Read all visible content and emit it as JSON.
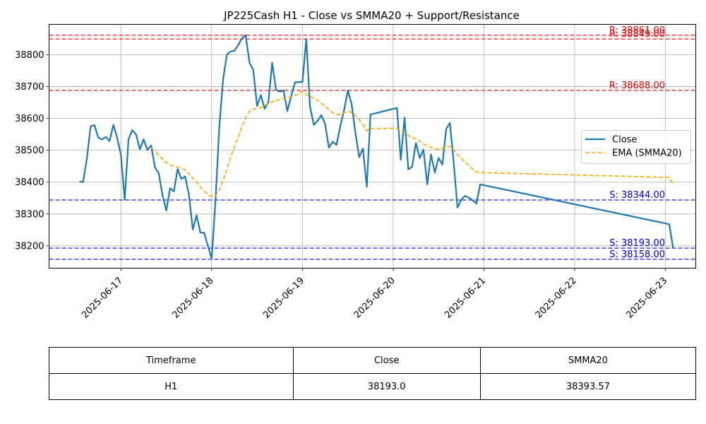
{
  "chart_data": {
    "type": "line",
    "title": "JP225Cash H1 - Close vs SMMA20 + Support/Resistance",
    "ylim": [
      38130,
      38895
    ],
    "yticks": [
      38200,
      38300,
      38400,
      38500,
      38600,
      38700,
      38800
    ],
    "ytick_labels": [
      "38200",
      "38300",
      "38400",
      "38500",
      "38600",
      "38700",
      "38800"
    ],
    "xlim": [
      "2025-06-16 05:00",
      "2025-06-23 08:00"
    ],
    "xticks": [
      "2025-06-17",
      "2025-06-18",
      "2025-06-19",
      "2025-06-20",
      "2025-06-21",
      "2025-06-22",
      "2025-06-23"
    ],
    "grid": true,
    "legend": {
      "position": "center-right"
    },
    "series": [
      {
        "name": "Close",
        "color": "#1f77b4",
        "style": "solid",
        "x": [
          "2025-06-16 13:00",
          "2025-06-16 14:00",
          "2025-06-16 15:00",
          "2025-06-16 16:00",
          "2025-06-16 17:00",
          "2025-06-16 18:00",
          "2025-06-16 19:00",
          "2025-06-16 20:00",
          "2025-06-16 21:00",
          "2025-06-16 22:00",
          "2025-06-16 23:00",
          "2025-06-17 00:00",
          "2025-06-17 01:00",
          "2025-06-17 02:00",
          "2025-06-17 03:00",
          "2025-06-17 04:00",
          "2025-06-17 05:00",
          "2025-06-17 06:00",
          "2025-06-17 07:00",
          "2025-06-17 08:00",
          "2025-06-17 09:00",
          "2025-06-17 10:00",
          "2025-06-17 11:00",
          "2025-06-17 12:00",
          "2025-06-17 13:00",
          "2025-06-17 14:00",
          "2025-06-17 15:00",
          "2025-06-17 16:00",
          "2025-06-17 17:00",
          "2025-06-17 18:00",
          "2025-06-17 19:00",
          "2025-06-17 20:00",
          "2025-06-17 21:00",
          "2025-06-17 22:00",
          "2025-06-17 23:00",
          "2025-06-18 00:00",
          "2025-06-18 01:00",
          "2025-06-18 02:00",
          "2025-06-18 03:00",
          "2025-06-18 04:00",
          "2025-06-18 05:00",
          "2025-06-18 06:00",
          "2025-06-18 07:00",
          "2025-06-18 08:00",
          "2025-06-18 09:00",
          "2025-06-18 10:00",
          "2025-06-18 11:00",
          "2025-06-18 12:00",
          "2025-06-18 13:00",
          "2025-06-18 14:00",
          "2025-06-18 15:00",
          "2025-06-18 16:00",
          "2025-06-18 17:00",
          "2025-06-18 18:00",
          "2025-06-18 19:00",
          "2025-06-18 20:00",
          "2025-06-18 21:00",
          "2025-06-18 22:00",
          "2025-06-18 23:00",
          "2025-06-19 00:00",
          "2025-06-19 01:00",
          "2025-06-19 02:00",
          "2025-06-19 03:00",
          "2025-06-19 04:00",
          "2025-06-19 05:00",
          "2025-06-19 06:00",
          "2025-06-19 07:00",
          "2025-06-19 08:00",
          "2025-06-19 09:00",
          "2025-06-19 10:00",
          "2025-06-19 11:00",
          "2025-06-19 12:00",
          "2025-06-19 13:00",
          "2025-06-19 14:00",
          "2025-06-19 15:00",
          "2025-06-19 16:00",
          "2025-06-19 17:00",
          "2025-06-19 18:00",
          "2025-06-20 01:00",
          "2025-06-20 02:00",
          "2025-06-20 03:00",
          "2025-06-20 04:00",
          "2025-06-20 05:00",
          "2025-06-20 06:00",
          "2025-06-20 07:00",
          "2025-06-20 08:00",
          "2025-06-20 09:00",
          "2025-06-20 10:00",
          "2025-06-20 11:00",
          "2025-06-20 12:00",
          "2025-06-20 13:00",
          "2025-06-20 14:00",
          "2025-06-20 15:00",
          "2025-06-20 16:00",
          "2025-06-20 17:00",
          "2025-06-20 18:00",
          "2025-06-20 19:00",
          "2025-06-20 20:00",
          "2025-06-20 21:00",
          "2025-06-20 22:00",
          "2025-06-20 23:00",
          "2025-06-23 01:00",
          "2025-06-23 02:00"
        ],
        "y": [
          38402,
          38400,
          38475,
          38575,
          38579,
          38540,
          38534,
          38542,
          38529,
          38580,
          38540,
          38485,
          38345,
          38534,
          38563,
          38550,
          38503,
          38534,
          38501,
          38515,
          38446,
          38429,
          38359,
          38311,
          38381,
          38371,
          38441,
          38410,
          38418,
          38360,
          38251,
          38296,
          38242,
          38241,
          38200,
          38160,
          38340,
          38571,
          38720,
          38800,
          38810,
          38812,
          38830,
          38851,
          38861,
          38775,
          38752,
          38639,
          38673,
          38630,
          38651,
          38775,
          38690,
          38684,
          38688,
          38623,
          38668,
          38713,
          38714,
          38714,
          38849,
          38637,
          38580,
          38592,
          38610,
          38583,
          38508,
          38527,
          38517,
          38576,
          38625,
          38688,
          38646,
          38555,
          38478,
          38506,
          38385,
          38612,
          38633,
          38470,
          38602,
          38440,
          38448,
          38523,
          38475,
          38502,
          38393,
          38487,
          38430,
          38476,
          38455,
          38567,
          38586,
          38460,
          38320,
          38345,
          38357,
          38351,
          38343,
          38333,
          38393,
          38268,
          38193
        ]
      },
      {
        "name": "EMA (SMMA20)",
        "color": "#ffa500",
        "style": "dashed",
        "x": [
          "2025-06-17 08:00",
          "2025-06-17 09:00",
          "2025-06-17 10:00",
          "2025-06-17 11:00",
          "2025-06-17 12:00",
          "2025-06-17 13:00",
          "2025-06-17 14:00",
          "2025-06-17 15:00",
          "2025-06-17 16:00",
          "2025-06-17 17:00",
          "2025-06-17 18:00",
          "2025-06-17 19:00",
          "2025-06-17 20:00",
          "2025-06-17 21:00",
          "2025-06-17 22:00",
          "2025-06-17 23:00",
          "2025-06-18 00:00",
          "2025-06-18 01:00",
          "2025-06-18 02:00",
          "2025-06-18 03:00",
          "2025-06-18 04:00",
          "2025-06-18 05:00",
          "2025-06-18 06:00",
          "2025-06-18 07:00",
          "2025-06-18 08:00",
          "2025-06-18 09:00",
          "2025-06-18 10:00",
          "2025-06-18 11:00",
          "2025-06-18 12:00",
          "2025-06-18 13:00",
          "2025-06-18 14:00",
          "2025-06-18 15:00",
          "2025-06-18 16:00",
          "2025-06-18 17:00",
          "2025-06-18 18:00",
          "2025-06-18 19:00",
          "2025-06-18 20:00",
          "2025-06-18 21:00",
          "2025-06-18 22:00",
          "2025-06-18 23:00",
          "2025-06-19 00:00",
          "2025-06-19 01:00",
          "2025-06-19 02:00",
          "2025-06-19 03:00",
          "2025-06-19 04:00",
          "2025-06-19 05:00",
          "2025-06-19 06:00",
          "2025-06-19 07:00",
          "2025-06-19 08:00",
          "2025-06-19 09:00",
          "2025-06-19 10:00",
          "2025-06-19 11:00",
          "2025-06-19 12:00",
          "2025-06-19 13:00",
          "2025-06-19 14:00",
          "2025-06-19 15:00",
          "2025-06-19 16:00",
          "2025-06-19 17:00",
          "2025-06-19 18:00",
          "2025-06-20 01:00",
          "2025-06-20 02:00",
          "2025-06-20 03:00",
          "2025-06-20 04:00",
          "2025-06-20 05:00",
          "2025-06-20 06:00",
          "2025-06-20 07:00",
          "2025-06-20 08:00",
          "2025-06-20 09:00",
          "2025-06-20 10:00",
          "2025-06-20 11:00",
          "2025-06-20 12:00",
          "2025-06-20 13:00",
          "2025-06-20 14:00",
          "2025-06-20 15:00",
          "2025-06-20 16:00",
          "2025-06-20 17:00",
          "2025-06-20 18:00",
          "2025-06-20 19:00",
          "2025-06-20 20:00",
          "2025-06-20 21:00",
          "2025-06-20 22:00",
          "2025-06-20 23:00",
          "2025-06-23 01:00",
          "2025-06-23 02:00"
        ],
        "y": [
          38508,
          38497,
          38485,
          38472,
          38461,
          38454,
          38450,
          38447,
          38444,
          38438,
          38425,
          38413,
          38399,
          38385,
          38372,
          38361,
          38355,
          38357,
          38375,
          38405,
          38440,
          38478,
          38510,
          38542,
          38573,
          38603,
          38622,
          38629,
          38631,
          38634,
          38640,
          38647,
          38652,
          38656,
          38659,
          38663,
          38665,
          38668,
          38672,
          38676,
          38686,
          38675,
          38669,
          38663,
          38657,
          38648,
          38638,
          38628,
          38618,
          38612,
          38612,
          38617,
          38622,
          38619,
          38609,
          38596,
          38580,
          38561,
          38568,
          38569,
          38563,
          38556,
          38546,
          38540,
          38536,
          38529,
          38520,
          38514,
          38509,
          38505,
          38503,
          38506,
          38510,
          38512,
          38501,
          38487,
          38475,
          38463,
          38452,
          38440,
          38432,
          38430,
          38415,
          38394
        ]
      }
    ],
    "levels": [
      {
        "type": "resistance",
        "value": 38861,
        "label": "R: 38861.00",
        "color": "#ee2222"
      },
      {
        "type": "resistance",
        "value": 38849,
        "label": "R: 38849.00",
        "color": "#ee2222"
      },
      {
        "type": "resistance",
        "value": 38688,
        "label": "R: 38688.00",
        "color": "#ee2222"
      },
      {
        "type": "support",
        "value": 38344,
        "label": "S: 38344.00",
        "color": "#2222ee"
      },
      {
        "type": "support",
        "value": 38193,
        "label": "S: 38193.00",
        "color": "#2222ee"
      },
      {
        "type": "support",
        "value": 38158,
        "label": "S: 38158.00",
        "color": "#2222ee"
      }
    ]
  },
  "table": {
    "headers": [
      "Timeframe",
      "Close",
      "SMMA20"
    ],
    "row": [
      "H1",
      "38193.0",
      "38393.57"
    ]
  }
}
